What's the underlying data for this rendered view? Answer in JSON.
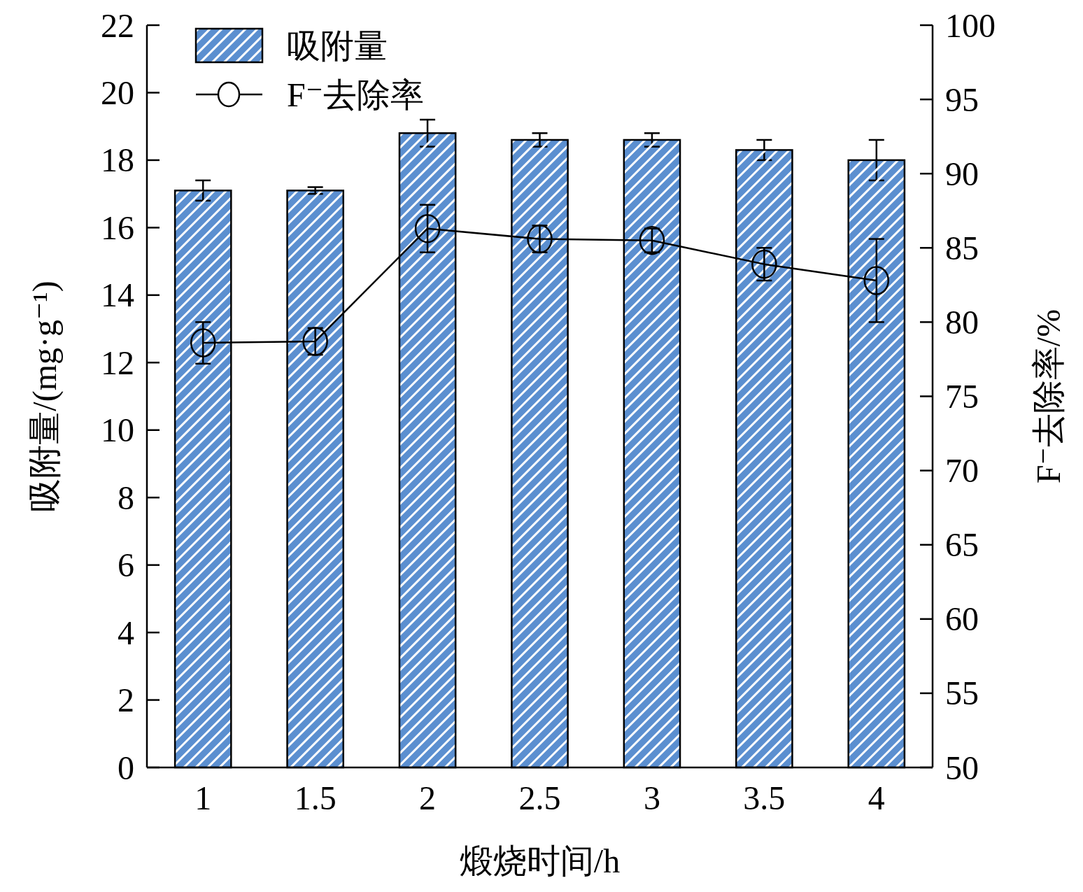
{
  "chart_data": {
    "type": "bar",
    "categories": [
      "1",
      "1.5",
      "2",
      "2.5",
      "3",
      "3.5",
      "4"
    ],
    "xlabel": "煅烧时间/h",
    "ylabel": "吸附量/(mg·g⁻¹)",
    "y2label": "F⁻去除率/%",
    "ylim": [
      0,
      22
    ],
    "yticks": [
      0,
      2,
      4,
      6,
      8,
      10,
      12,
      14,
      16,
      18,
      20,
      22
    ],
    "y2lim": [
      50,
      100
    ],
    "y2ticks": [
      50,
      55,
      60,
      65,
      70,
      75,
      80,
      85,
      90,
      95,
      100
    ],
    "legend": "top left",
    "grid": false,
    "series": [
      {
        "name": "吸附量",
        "color": "#5b8fd0",
        "values": [
          17.1,
          17.1,
          18.8,
          18.6,
          18.6,
          18.3,
          18.0
        ],
        "errors": [
          0.3,
          0.1,
          0.4,
          0.2,
          0.2,
          0.3,
          0.6
        ]
      },
      {
        "name": "F⁻去除率",
        "type": "line",
        "axis": "y2",
        "color": "#000000",
        "marker": "circle",
        "values": [
          78.6,
          78.7,
          86.3,
          85.6,
          85.5,
          83.9,
          82.8
        ],
        "errors": [
          1.4,
          0.9,
          1.6,
          0.9,
          0.8,
          1.1,
          2.8
        ]
      }
    ]
  }
}
